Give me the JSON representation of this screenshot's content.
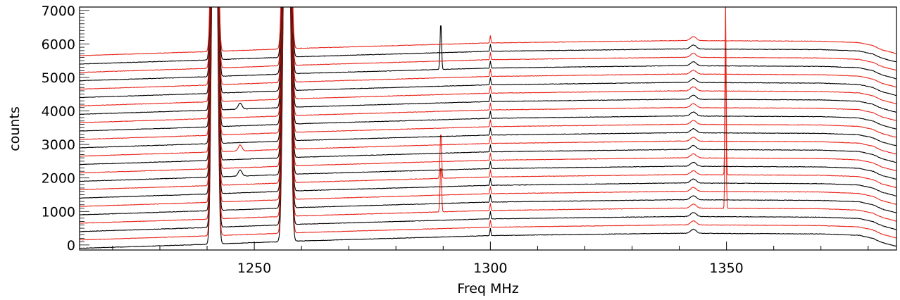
{
  "chart_data": {
    "type": "line",
    "title": "",
    "xlabel": "Freq MHz",
    "ylabel": "counts",
    "xlim": [
      1213,
      1386
    ],
    "ylim": [
      -150,
      7100
    ],
    "x_ticks": [
      1250,
      1300,
      1350
    ],
    "x_tick_labels": [
      "1250",
      "1300",
      "1350"
    ],
    "y_ticks": [
      0,
      1000,
      2000,
      3000,
      4000,
      5000,
      6000,
      7000
    ],
    "y_tick_labels": [
      "0",
      "1000",
      "2000",
      "3000",
      "4000",
      "5000",
      "6000",
      "7000"
    ],
    "grid": false,
    "legend": "none",
    "series_colors": {
      "black": "#000000",
      "red": "#e8261c"
    },
    "spectra": {
      "count": 24,
      "first_offset": -100,
      "spacing": 250,
      "baseline_shape": {
        "x": [
          1213,
          1240,
          1260,
          1300,
          1340,
          1370,
          1378,
          1381,
          1383,
          1386
        ],
        "counts": [
          0,
          120,
          220,
          380,
          450,
          430,
          390,
          300,
          170,
          60
        ]
      },
      "colors_alternate": [
        "#000000",
        "#e8261c"
      ]
    },
    "features": [
      {
        "x": 1241.2,
        "counts": 9000,
        "width": 0.35,
        "all": true
      },
      {
        "x": 1242.0,
        "counts": 9000,
        "width": 0.35,
        "all": true
      },
      {
        "x": 1256.4,
        "counts": 9000,
        "width": 0.4,
        "all": true
      },
      {
        "x": 1257.4,
        "counts": 9000,
        "width": 0.4,
        "all": true
      },
      {
        "x": 1289.5,
        "counts": 1400,
        "width": 0.15,
        "rows": [
          3,
          7,
          20
        ]
      },
      {
        "x": 1300.0,
        "counts": 220,
        "width": 0.1,
        "all": true
      },
      {
        "x": 1343.0,
        "counts": 120,
        "width": 0.6,
        "all": true
      },
      {
        "x": 1349.8,
        "counts": 5200,
        "width": 0.12,
        "rows": [
          3,
          7
        ]
      },
      {
        "x": 1247.0,
        "counts": 180,
        "width": 0.4,
        "rows": [
          8,
          11,
          16
        ]
      }
    ]
  }
}
